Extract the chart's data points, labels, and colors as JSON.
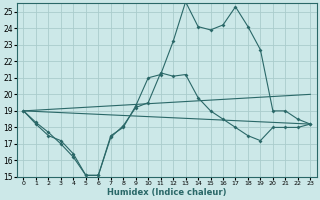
{
  "xlabel": "Humidex (Indice chaleur)",
  "bg_color": "#cce8e8",
  "grid_color": "#aacccc",
  "line_color": "#2a6868",
  "xlim": [
    -0.5,
    23.5
  ],
  "ylim": [
    15,
    25.5
  ],
  "xticks": [
    0,
    1,
    2,
    3,
    4,
    5,
    6,
    7,
    8,
    9,
    10,
    11,
    12,
    13,
    14,
    15,
    16,
    17,
    18,
    19,
    20,
    21,
    22,
    23
  ],
  "yticks": [
    15,
    16,
    17,
    18,
    19,
    20,
    21,
    22,
    23,
    24,
    25
  ],
  "line1_x": [
    0,
    1,
    2,
    3,
    4,
    5,
    6,
    7,
    8,
    9,
    10,
    11,
    12,
    13,
    14,
    15,
    16,
    17,
    18,
    19,
    20,
    21,
    22,
    23
  ],
  "line1_y": [
    19.0,
    18.3,
    17.7,
    17.0,
    16.2,
    15.1,
    15.1,
    17.5,
    18.0,
    19.3,
    21.0,
    21.2,
    23.2,
    25.6,
    24.1,
    23.9,
    24.2,
    25.3,
    24.1,
    22.7,
    19.0,
    19.0,
    18.5,
    18.2
  ],
  "line2_x": [
    0,
    23
  ],
  "line2_y": [
    19.0,
    18.2
  ],
  "line3_x": [
    0,
    23
  ],
  "line3_y": [
    19.0,
    20.0
  ],
  "line4_x": [
    0,
    1,
    2,
    3,
    4,
    5,
    6,
    7,
    8,
    9,
    10,
    11,
    12,
    13,
    14,
    15,
    16,
    17,
    18,
    19,
    20,
    21,
    22,
    23
  ],
  "line4_y": [
    19.0,
    18.2,
    17.5,
    17.2,
    16.4,
    15.1,
    15.1,
    17.4,
    18.1,
    19.2,
    19.5,
    21.3,
    21.1,
    21.2,
    19.8,
    19.0,
    18.5,
    18.0,
    17.5,
    17.2,
    18.0,
    18.0,
    18.0,
    18.2
  ]
}
